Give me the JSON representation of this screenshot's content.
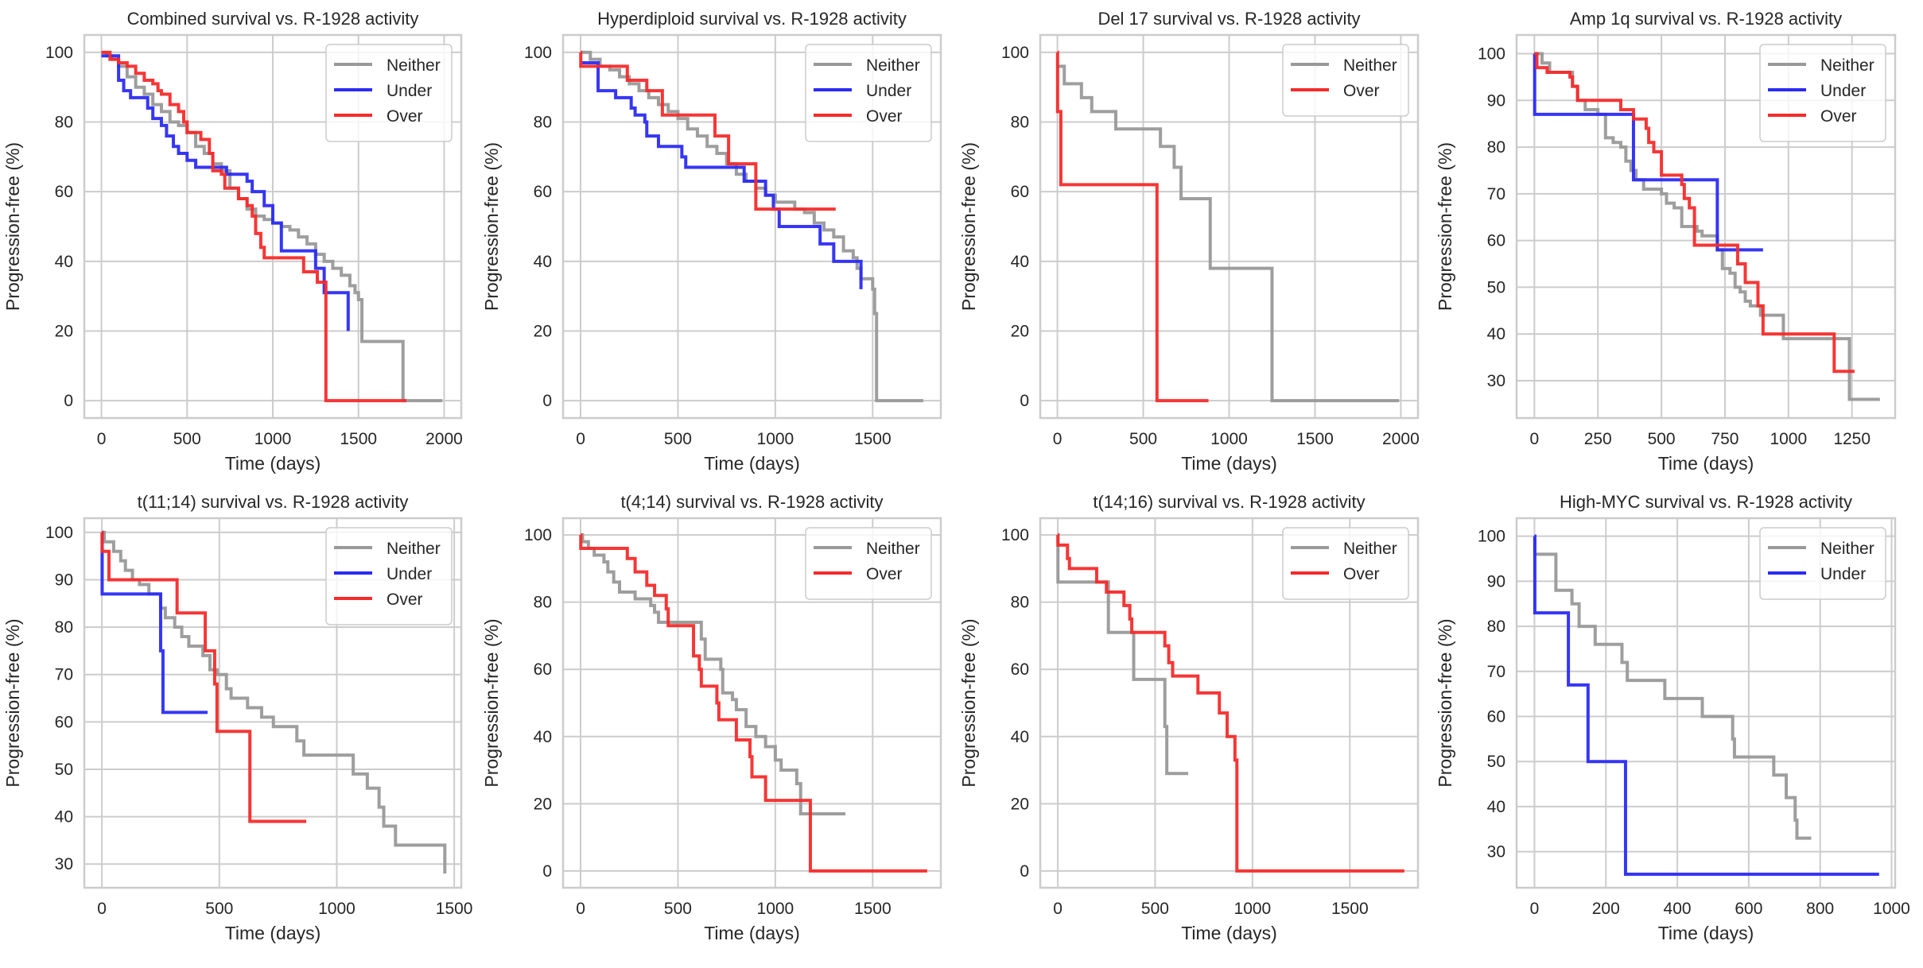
{
  "figure": {
    "title": "R-1928 activity survival panels",
    "colors": {
      "Neither": "#999999",
      "Under": "#2b2bf5",
      "Over": "#f52b2b",
      "grid": "#cccccc",
      "frame": "#cccccc"
    }
  },
  "chart_data": [
    {
      "type": "line",
      "subtype": "kaplan-meier-step",
      "title": "Combined survival vs. R-1928 activity",
      "xlabel": "Time (days)",
      "ylabel": "Progression-free (%)",
      "xlim": [
        -100,
        2100
      ],
      "ylim": [
        -5,
        105
      ],
      "xticks": [
        0,
        500,
        1000,
        1500,
        2000
      ],
      "yticks": [
        0,
        20,
        40,
        60,
        80,
        100
      ],
      "grid": true,
      "legend": "top-right",
      "series": [
        {
          "name": "Neither",
          "x": [
            0,
            30,
            60,
            100,
            150,
            200,
            250,
            300,
            350,
            400,
            450,
            500,
            550,
            600,
            650,
            700,
            750,
            800,
            850,
            900,
            950,
            1000,
            1050,
            1100,
            1150,
            1200,
            1250,
            1300,
            1350,
            1400,
            1450,
            1480,
            1500,
            1520,
            1750,
            1760,
            1990
          ],
          "y": [
            100,
            99,
            98,
            96,
            93,
            90,
            88,
            85,
            83,
            80,
            79,
            77,
            73,
            71,
            68,
            66,
            61,
            58,
            55,
            53,
            52,
            51,
            50,
            49,
            47,
            45,
            42,
            40,
            38,
            36,
            33,
            31,
            29,
            17,
            17,
            0,
            0
          ]
        },
        {
          "name": "Under",
          "x": [
            0,
            90,
            100,
            130,
            170,
            250,
            270,
            300,
            350,
            380,
            420,
            450,
            480,
            500,
            550,
            560,
            720,
            730,
            850,
            880,
            950,
            1000,
            1050,
            1230,
            1250,
            1300,
            1440
          ],
          "y": [
            99,
            99,
            92,
            89,
            87,
            87,
            84,
            81,
            79,
            76,
            73,
            71,
            71,
            69,
            67,
            67,
            67,
            65,
            63,
            60,
            56,
            51,
            43,
            43,
            38,
            31,
            20
          ]
        },
        {
          "name": "Over",
          "x": [
            0,
            50,
            100,
            150,
            200,
            250,
            300,
            330,
            350,
            400,
            450,
            480,
            500,
            560,
            580,
            630,
            650,
            700,
            720,
            800,
            850,
            880,
            900,
            930,
            950,
            1170,
            1180,
            1260,
            1300,
            1310,
            1780
          ],
          "y": [
            100,
            98,
            97,
            96,
            94,
            92,
            91,
            89,
            88,
            85,
            83,
            80,
            77,
            77,
            75,
            71,
            66,
            65,
            61,
            58,
            56,
            53,
            48,
            44,
            41,
            41,
            37,
            34,
            34,
            0,
            0
          ]
        }
      ]
    },
    {
      "type": "line",
      "subtype": "kaplan-meier-step",
      "title": "Hyperdiploid survival vs. R-1928 activity",
      "xlabel": "Time (days)",
      "ylabel": "Progression-free (%)",
      "xlim": [
        -90,
        1850
      ],
      "ylim": [
        -5,
        105
      ],
      "xticks": [
        0,
        500,
        1000,
        1500
      ],
      "yticks": [
        0,
        20,
        40,
        60,
        80,
        100
      ],
      "grid": true,
      "legend": "top-right",
      "series": [
        {
          "name": "Neither",
          "x": [
            0,
            50,
            100,
            150,
            200,
            250,
            300,
            350,
            400,
            450,
            500,
            550,
            600,
            650,
            700,
            750,
            800,
            850,
            900,
            950,
            1000,
            1050,
            1100,
            1150,
            1200,
            1250,
            1300,
            1330,
            1350,
            1400,
            1420,
            1440,
            1500,
            1510,
            1520,
            1760
          ],
          "y": [
            100,
            98,
            96,
            95,
            93,
            91,
            89,
            87,
            85,
            83,
            81,
            78,
            76,
            73,
            71,
            68,
            65,
            63,
            61,
            59,
            57,
            57,
            55,
            54,
            51,
            49,
            47,
            47,
            43,
            41,
            38,
            35,
            32,
            25,
            0,
            0
          ]
        },
        {
          "name": "Under",
          "x": [
            0,
            80,
            90,
            180,
            260,
            280,
            330,
            340,
            400,
            520,
            540,
            560,
            840,
            950,
            990,
            1020,
            1230,
            1300,
            1440
          ],
          "y": [
            97,
            97,
            89,
            87,
            84,
            82,
            80,
            76,
            73,
            70,
            67,
            67,
            63,
            59,
            55,
            50,
            45,
            40,
            32
          ]
        },
        {
          "name": "Over",
          "x": [
            0,
            1,
            240,
            340,
            420,
            690,
            760,
            900,
            1310
          ],
          "y": [
            100,
            96,
            92,
            89,
            82,
            76,
            68,
            55,
            55
          ]
        }
      ]
    },
    {
      "type": "line",
      "subtype": "kaplan-meier-step",
      "title": "Del 17 survival vs. R-1928 activity",
      "xlabel": "Time (days)",
      "ylabel": "Progression-free (%)",
      "xlim": [
        -100,
        2100
      ],
      "ylim": [
        -5,
        105
      ],
      "xticks": [
        0,
        500,
        1000,
        1500,
        2000
      ],
      "yticks": [
        0,
        20,
        40,
        60,
        80,
        100
      ],
      "grid": true,
      "legend": "top-right",
      "series": [
        {
          "name": "Neither",
          "x": [
            0,
            40,
            140,
            200,
            340,
            600,
            680,
            720,
            890,
            1250,
            1990
          ],
          "y": [
            96,
            91,
            87,
            83,
            78,
            73,
            67,
            58,
            38,
            0,
            0
          ]
        },
        {
          "name": "Over",
          "x": [
            0,
            1,
            15,
            20,
            580,
            880
          ],
          "y": [
            100,
            83,
            83,
            62,
            0,
            0
          ]
        }
      ]
    },
    {
      "type": "line",
      "subtype": "kaplan-meier-step",
      "title": "Amp 1q survival vs. R-1928 activity",
      "xlabel": "Time (days)",
      "ylabel": "Progression-free (%)",
      "xlim": [
        -70,
        1420
      ],
      "ylim": [
        22,
        104
      ],
      "xticks": [
        0,
        250,
        500,
        750,
        1000,
        1250
      ],
      "yticks": [
        30,
        40,
        50,
        60,
        70,
        80,
        90,
        100
      ],
      "grid": true,
      "legend": "top-right",
      "series": [
        {
          "name": "Neither",
          "x": [
            0,
            30,
            60,
            130,
            150,
            170,
            200,
            250,
            280,
            310,
            340,
            360,
            380,
            400,
            430,
            500,
            520,
            550,
            580,
            640,
            660,
            700,
            720,
            740,
            770,
            790,
            810,
            830,
            850,
            890,
            980,
            1240,
            1360
          ],
          "y": [
            100,
            98,
            96,
            96,
            93,
            90,
            88,
            87,
            82,
            81,
            80,
            77,
            75,
            73,
            71,
            70,
            68,
            67,
            63,
            62,
            61,
            61,
            58,
            54,
            53,
            50,
            49,
            47,
            46,
            44,
            39,
            26,
            26
          ]
        },
        {
          "name": "Under",
          "x": [
            0,
            1,
            390,
            720,
            900
          ],
          "y": [
            100,
            87,
            73,
            58,
            58
          ]
        },
        {
          "name": "Over",
          "x": [
            0,
            10,
            50,
            140,
            150,
            170,
            340,
            390,
            440,
            450,
            470,
            500,
            580,
            590,
            610,
            630,
            800,
            830,
            880,
            900,
            1180,
            1260
          ],
          "y": [
            100,
            97,
            96,
            95,
            93,
            90,
            88,
            86,
            84,
            81,
            79,
            74,
            72,
            69,
            67,
            59,
            55,
            51,
            46,
            40,
            32,
            32
          ]
        }
      ]
    },
    {
      "type": "line",
      "subtype": "kaplan-meier-step",
      "title": "t(11;14) survival vs. R-1928 activity",
      "xlabel": "Time (days)",
      "ylabel": "Progression-free (%)",
      "xlim": [
        -75,
        1530
      ],
      "ylim": [
        25,
        103
      ],
      "xticks": [
        0,
        500,
        1000,
        1500
      ],
      "yticks": [
        30,
        40,
        50,
        60,
        70,
        80,
        90,
        100
      ],
      "grid": true,
      "legend": "top-right",
      "series": [
        {
          "name": "Neither",
          "x": [
            0,
            10,
            50,
            80,
            100,
            130,
            160,
            200,
            250,
            270,
            310,
            340,
            370,
            430,
            460,
            490,
            530,
            550,
            620,
            680,
            730,
            830,
            860,
            1070,
            1130,
            1180,
            1200,
            1250,
            1460
          ],
          "y": [
            100,
            98,
            96,
            94,
            92,
            90,
            89,
            87,
            84,
            82,
            80,
            78,
            76,
            74,
            71,
            70,
            67,
            65,
            63,
            61,
            59,
            56,
            53,
            49,
            46,
            42,
            38,
            34,
            28
          ]
        },
        {
          "name": "Under",
          "x": [
            0,
            1,
            250,
            260,
            450
          ],
          "y": [
            100,
            87,
            75,
            62,
            62
          ]
        },
        {
          "name": "Over",
          "x": [
            0,
            1,
            30,
            320,
            440,
            480,
            490,
            630,
            870
          ],
          "y": [
            100,
            96,
            90,
            83,
            75,
            68,
            58,
            39,
            39
          ]
        }
      ]
    },
    {
      "type": "line",
      "subtype": "kaplan-meier-step",
      "title": "t(4;14) survival vs. R-1928 activity",
      "xlabel": "Time (days)",
      "ylabel": "Progression-free (%)",
      "xlim": [
        -90,
        1850
      ],
      "ylim": [
        -5,
        105
      ],
      "xticks": [
        0,
        500,
        1000,
        1500
      ],
      "yticks": [
        0,
        20,
        40,
        60,
        80,
        100
      ],
      "grid": true,
      "legend": "top-right",
      "series": [
        {
          "name": "Neither",
          "x": [
            0,
            10,
            40,
            70,
            120,
            140,
            170,
            200,
            280,
            360,
            380,
            400,
            600,
            620,
            640,
            720,
            730,
            780,
            800,
            850,
            900,
            950,
            1000,
            1030,
            1110,
            1130,
            1360
          ],
          "y": [
            100,
            98,
            96,
            94,
            92,
            89,
            86,
            83,
            81,
            79,
            77,
            74,
            74,
            69,
            63,
            60,
            53,
            51,
            48,
            43,
            40,
            37,
            33,
            30,
            26,
            17,
            17
          ]
        },
        {
          "name": "Over",
          "x": [
            0,
            1,
            240,
            280,
            340,
            380,
            440,
            450,
            580,
            610,
            620,
            700,
            710,
            800,
            870,
            880,
            950,
            1180,
            1780
          ],
          "y": [
            100,
            96,
            93,
            89,
            85,
            82,
            78,
            73,
            64,
            60,
            55,
            50,
            45,
            39,
            34,
            28,
            21,
            0,
            0
          ]
        }
      ]
    },
    {
      "type": "line",
      "subtype": "kaplan-meier-step",
      "title": "t(14;16) survival vs. R-1928 activity",
      "xlabel": "Time (days)",
      "ylabel": "Progression-free (%)",
      "xlim": [
        -90,
        1850
      ],
      "ylim": [
        -5,
        105
      ],
      "xticks": [
        0,
        500,
        1000,
        1500
      ],
      "yticks": [
        0,
        20,
        40,
        60,
        80,
        100
      ],
      "grid": true,
      "legend": "top-right",
      "series": [
        {
          "name": "Neither",
          "x": [
            0,
            1,
            260,
            390,
            550,
            560,
            670
          ],
          "y": [
            100,
            86,
            71,
            57,
            43,
            29,
            29
          ]
        },
        {
          "name": "Over",
          "x": [
            0,
            1,
            50,
            60,
            200,
            250,
            340,
            370,
            380,
            550,
            570,
            590,
            720,
            830,
            870,
            910,
            920,
            1780
          ],
          "y": [
            100,
            97,
            93,
            90,
            86,
            83,
            79,
            75,
            71,
            67,
            62,
            58,
            53,
            47,
            40,
            33,
            0,
            0
          ]
        }
      ]
    },
    {
      "type": "line",
      "subtype": "kaplan-meier-step",
      "title": "High-MYC survival vs. R-1928 activity",
      "xlabel": "Time (days)",
      "ylabel": "Progression-free (%)",
      "xlim": [
        -50,
        1010
      ],
      "ylim": [
        22,
        104
      ],
      "xticks": [
        0,
        200,
        400,
        600,
        800,
        1000
      ],
      "yticks": [
        30,
        40,
        50,
        60,
        70,
        80,
        90,
        100
      ],
      "grid": true,
      "legend": "top-right",
      "series": [
        {
          "name": "Neither",
          "x": [
            0,
            1,
            60,
            105,
            125,
            170,
            245,
            260,
            365,
            470,
            555,
            560,
            670,
            705,
            730,
            735,
            775
          ],
          "y": [
            100,
            96,
            88,
            85,
            80,
            76,
            72,
            68,
            64,
            60,
            55,
            51,
            47,
            42,
            37,
            33,
            33
          ]
        },
        {
          "name": "Under",
          "x": [
            0,
            1,
            95,
            150,
            255,
            965
          ],
          "y": [
            100,
            83,
            67,
            50,
            25,
            25
          ]
        }
      ]
    }
  ]
}
